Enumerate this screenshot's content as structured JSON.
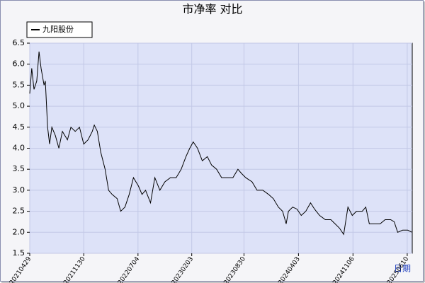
{
  "chart_data": {
    "type": "line",
    "title": "市净率  对比",
    "x_label": "日期",
    "x": [
      "20210429",
      "20210507",
      "20210516",
      "20210527",
      "20210605",
      "20210613",
      "20210625",
      "20210630",
      "20210709",
      "20210717",
      "20210726",
      "20210809",
      "20210823",
      "20210906",
      "20210926",
      "20211010",
      "20211027",
      "20211113",
      "20211130",
      "20211217",
      "20220103",
      "20220111",
      "20220123",
      "20220206",
      "20220223",
      "20220309",
      "20220323",
      "20220412",
      "20220426",
      "20220513",
      "20220530",
      "20220616",
      "20220706",
      "20220720",
      "20220803",
      "20220823",
      "20220909",
      "20220929",
      "20221019",
      "20221110",
      "20221203",
      "20221223",
      "20230111",
      "20230126",
      "20230209",
      "20230226",
      "20230317",
      "20230406",
      "20230423",
      "20230513",
      "20230602",
      "20230624",
      "20230717",
      "20230806",
      "20230820",
      "20230906",
      "20231001",
      "20231021",
      "20231113",
      "20231206",
      "20231225",
      "20240114",
      "20240131",
      "20240214",
      "20240223",
      "20240311",
      "20240328",
      "20240414",
      "20240502",
      "20240521",
      "20240606",
      "20240626",
      "20240719",
      "20240810",
      "20240827",
      "20240913",
      "20240930",
      "20241017",
      "20241103",
      "20241120",
      "20241213",
      "20241227",
      "20250110",
      "20250202",
      "20250222",
      "20250314",
      "20250405",
      "20250419",
      "20250503",
      "20250523",
      "20250612",
      "20250629"
    ],
    "series": [
      {
        "name": "九阳股份",
        "color": "#000000",
        "values": [
          5.3,
          5.9,
          5.4,
          5.6,
          6.3,
          5.9,
          5.5,
          5.6,
          4.5,
          4.1,
          4.5,
          4.3,
          4.0,
          4.4,
          4.2,
          4.5,
          4.4,
          4.5,
          4.1,
          4.2,
          4.4,
          4.55,
          4.4,
          3.9,
          3.5,
          3.0,
          2.9,
          2.8,
          2.5,
          2.6,
          2.9,
          3.3,
          3.1,
          2.9,
          3.0,
          2.7,
          3.3,
          3.0,
          3.2,
          3.3,
          3.3,
          3.5,
          3.8,
          4.0,
          4.15,
          4.0,
          3.7,
          3.8,
          3.6,
          3.5,
          3.3,
          3.3,
          3.3,
          3.5,
          3.4,
          3.3,
          3.2,
          3.0,
          3.0,
          2.9,
          2.8,
          2.6,
          2.5,
          2.2,
          2.5,
          2.6,
          2.55,
          2.4,
          2.5,
          2.7,
          2.55,
          2.4,
          2.3,
          2.3,
          2.2,
          2.1,
          1.95,
          2.6,
          2.4,
          2.5,
          2.5,
          2.6,
          2.2,
          2.2,
          2.2,
          2.3,
          2.3,
          2.25,
          2.0,
          2.05,
          2.05,
          2.0
        ]
      }
    ],
    "xlim": [
      "20210429",
      "20250630"
    ],
    "xticks": [
      "20210429",
      "20211130",
      "20220704",
      "20230203",
      "20230830",
      "20240403",
      "20241106",
      "20250610"
    ],
    "ylim": [
      1.5,
      6.5
    ],
    "yticks": [
      1.5,
      {
        "value": 2,
        "label": "2.0"
      },
      2.5,
      {
        "value": 3,
        "label": "3.0"
      },
      3.5,
      {
        "value": 4,
        "label": "4.0"
      },
      4.5,
      {
        "value": 5,
        "label": "5.0"
      },
      5.5,
      {
        "value": 6,
        "label": "6.0"
      },
      6.5
    ],
    "grid": true,
    "legend": "top-left"
  }
}
